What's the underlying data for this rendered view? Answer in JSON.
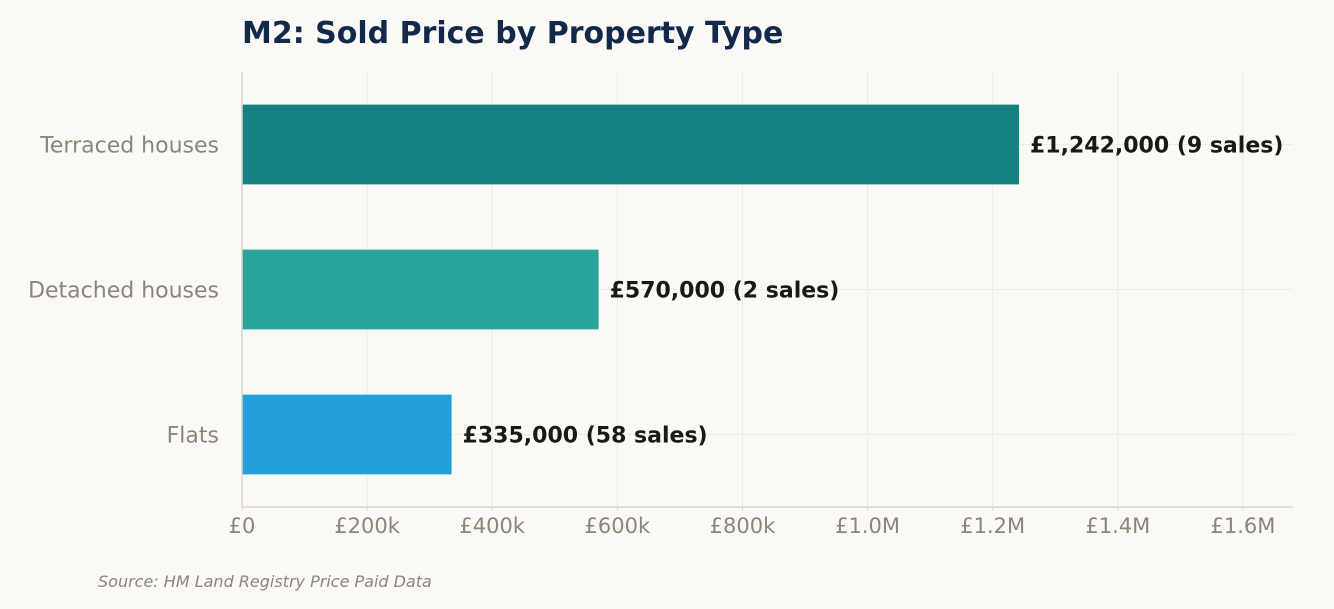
{
  "chart_data": {
    "type": "bar",
    "orientation": "horizontal",
    "title": "M2: Sold Price by Property Type",
    "categories": [
      "Terraced houses",
      "Detached houses",
      "Flats"
    ],
    "values": [
      1242000,
      570000,
      335000
    ],
    "sales": [
      9,
      2,
      58
    ],
    "bar_labels": [
      "£1,242,000  (9 sales)",
      "£570,000  (2 sales)",
      "£335,000  (58 sales)"
    ],
    "bar_colors": [
      "#178181",
      "#2aa49a",
      "#239fd9"
    ],
    "xlabel": "",
    "ylabel": "",
    "xlim": [
      0,
      1680000
    ],
    "x_ticks": [
      0,
      200000,
      400000,
      600000,
      800000,
      1000000,
      1200000,
      1400000,
      1600000
    ],
    "x_tick_labels": [
      "£0",
      "£200k",
      "£400k",
      "£600k",
      "£800k",
      "£1.0M",
      "£1.2M",
      "£1.4M",
      "£1.6M"
    ],
    "grid": true,
    "legend": "none",
    "source": "Source: HM Land Registry Price Paid Data"
  },
  "colors": {
    "background": "#faf9f5",
    "title": "#13294b",
    "axis_text": "#8a8778",
    "bar_label_text": "#1a1a14",
    "grid": "#ecebe5",
    "axis_line": "#d8d6cc"
  }
}
